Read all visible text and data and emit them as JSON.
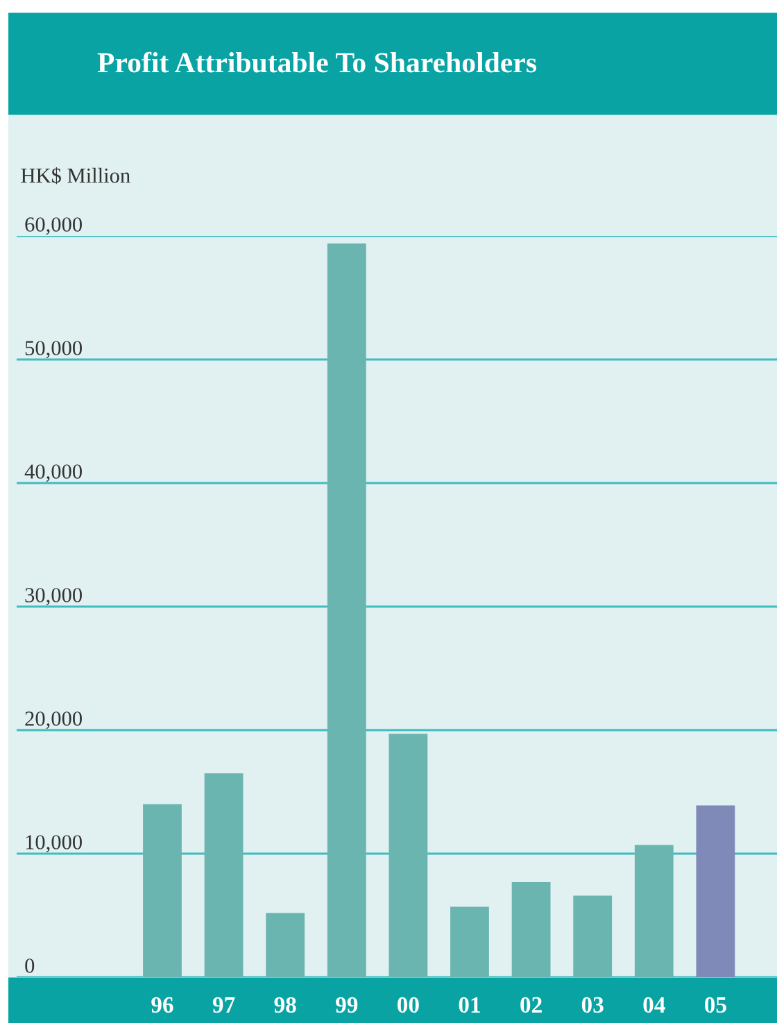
{
  "chart_data": {
    "type": "bar",
    "title": "Profit Attributable To Shareholders",
    "ylabel": "HK$ Million",
    "categories": [
      "96",
      "97",
      "98",
      "99",
      "00",
      "01",
      "02",
      "03",
      "04",
      "05"
    ],
    "values": [
      14000,
      16500,
      5200,
      59400,
      19700,
      5700,
      7700,
      6600,
      10700,
      13900
    ],
    "colors": [
      "#6bb5b0",
      "#6bb5b0",
      "#6bb5b0",
      "#6bb5b0",
      "#6bb5b0",
      "#6bb5b0",
      "#6bb5b0",
      "#6bb5b0",
      "#6bb5b0",
      "#7f8ab8"
    ],
    "ylim": [
      0,
      60000
    ],
    "yticks": [
      {
        "value": 0,
        "label": "0"
      },
      {
        "value": 10000,
        "label": "10,000"
      },
      {
        "value": 20000,
        "label": "20,000"
      },
      {
        "value": 30000,
        "label": "30,000"
      },
      {
        "value": 40000,
        "label": "40,000"
      },
      {
        "value": 50000,
        "label": "50,000"
      },
      {
        "value": 60000,
        "label": "60,000"
      }
    ],
    "grid": "y"
  }
}
